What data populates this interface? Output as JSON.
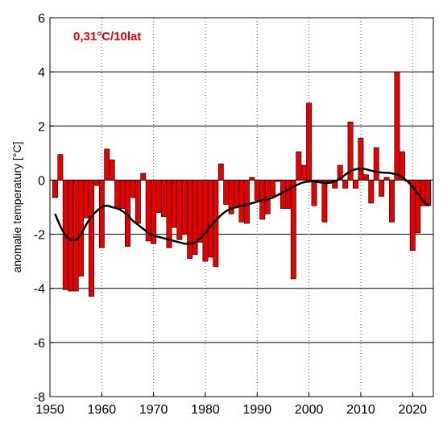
{
  "chart_data": {
    "type": "bar",
    "annotation": "0,31°C/10lat",
    "ylabel": "anomalie temperatury [°C]",
    "xlabel": "",
    "xlim": [
      1950,
      2024
    ],
    "ylim": [
      -8,
      6
    ],
    "x_ticks": [
      "1950",
      "1960",
      "1970",
      "1980",
      "1990",
      "2000",
      "2010",
      "2020"
    ],
    "y_ticks": [
      "-8",
      "-6",
      "-4",
      "-2",
      "0",
      "2",
      "4",
      "6"
    ],
    "grid": {
      "horizontal": "solid",
      "vertical": "dotted"
    },
    "colors": {
      "bars": "#e60000",
      "bar_outline": "#000000",
      "trend": "#000000",
      "annotation": "#e60000"
    },
    "series": [
      {
        "type": "bar",
        "x": [
          1951,
          1952,
          1953,
          1954,
          1955,
          1956,
          1957,
          1958,
          1959,
          1960,
          1961,
          1962,
          1963,
          1964,
          1965,
          1966,
          1967,
          1968,
          1969,
          1970,
          1971,
          1972,
          1973,
          1974,
          1975,
          1976,
          1977,
          1978,
          1979,
          1980,
          1981,
          1982,
          1983,
          1984,
          1985,
          1986,
          1987,
          1988,
          1989,
          1990,
          1991,
          1992,
          1993,
          1994,
          1995,
          1996,
          1997,
          1998,
          1999,
          2000,
          2001,
          2002,
          2003,
          2004,
          2005,
          2006,
          2007,
          2008,
          2009,
          2010,
          2011,
          2012,
          2013,
          2014,
          2015,
          2016,
          2017,
          2018,
          2019,
          2020,
          2021,
          2022,
          2023
        ],
        "values": [
          -0.65,
          0.95,
          -4.05,
          -4.1,
          -4.1,
          -3.55,
          -1.4,
          -4.3,
          -0.2,
          -2.5,
          1.15,
          0.75,
          -1.05,
          -1.05,
          -2.45,
          -0.65,
          -1.6,
          0.25,
          -2.25,
          -2.35,
          -1.2,
          -1.35,
          -2.5,
          -1.75,
          -2.2,
          -2.0,
          -2.9,
          -2.75,
          -2.3,
          -3.0,
          -2.85,
          -3.2,
          0.6,
          -0.9,
          -1.25,
          -0.95,
          -1.55,
          -1.6,
          0.1,
          -0.75,
          -1.45,
          -1.25,
          -0.6,
          -0.05,
          -1.05,
          -1.05,
          -3.65,
          1.05,
          0.55,
          2.85,
          -0.95,
          -0.1,
          -1.55,
          -0.05,
          -0.3,
          0.55,
          -0.3,
          2.15,
          -0.3,
          1.55,
          0.2,
          -0.85,
          1.2,
          -0.6,
          0.1,
          -1.55,
          4.0,
          1.05,
          -0.05,
          -2.6,
          -1.95,
          -0.95,
          -0.95
        ]
      },
      {
        "type": "line",
        "x": [
          1951,
          1952,
          1953,
          1954,
          1955,
          1956,
          1957,
          1958,
          1959,
          1960,
          1961,
          1962,
          1963,
          1964,
          1965,
          1966,
          1967,
          1968,
          1969,
          1970,
          1971,
          1972,
          1973,
          1974,
          1975,
          1976,
          1977,
          1978,
          1979,
          1980,
          1981,
          1982,
          1983,
          1984,
          1985,
          1986,
          1987,
          1988,
          1989,
          1990,
          1991,
          1992,
          1993,
          1994,
          1995,
          1996,
          1997,
          1998,
          1999,
          2000,
          2001,
          2002,
          2003,
          2004,
          2005,
          2006,
          2007,
          2008,
          2009,
          2010,
          2011,
          2012,
          2013,
          2014,
          2015,
          2016,
          2017,
          2018,
          2019,
          2020,
          2021,
          2022,
          2023
        ],
        "values": [
          -1.25,
          -1.7,
          -2.05,
          -2.2,
          -2.2,
          -2.0,
          -1.65,
          -1.35,
          -1.15,
          -1.0,
          -0.95,
          -1.0,
          -1.05,
          -1.15,
          -1.3,
          -1.5,
          -1.65,
          -1.8,
          -1.95,
          -2.05,
          -2.1,
          -2.15,
          -2.2,
          -2.25,
          -2.3,
          -2.35,
          -2.35,
          -2.3,
          -2.15,
          -1.95,
          -1.7,
          -1.5,
          -1.3,
          -1.15,
          -1.05,
          -1.0,
          -0.95,
          -0.9,
          -0.85,
          -0.8,
          -0.75,
          -0.7,
          -0.65,
          -0.55,
          -0.45,
          -0.35,
          -0.25,
          -0.15,
          -0.08,
          -0.05,
          -0.05,
          -0.08,
          -0.1,
          -0.1,
          -0.05,
          0.05,
          0.2,
          0.33,
          0.4,
          0.42,
          0.4,
          0.35,
          0.3,
          0.28,
          0.27,
          0.25,
          0.2,
          0.1,
          -0.05,
          -0.25,
          -0.5,
          -0.75,
          -0.95
        ]
      }
    ]
  }
}
